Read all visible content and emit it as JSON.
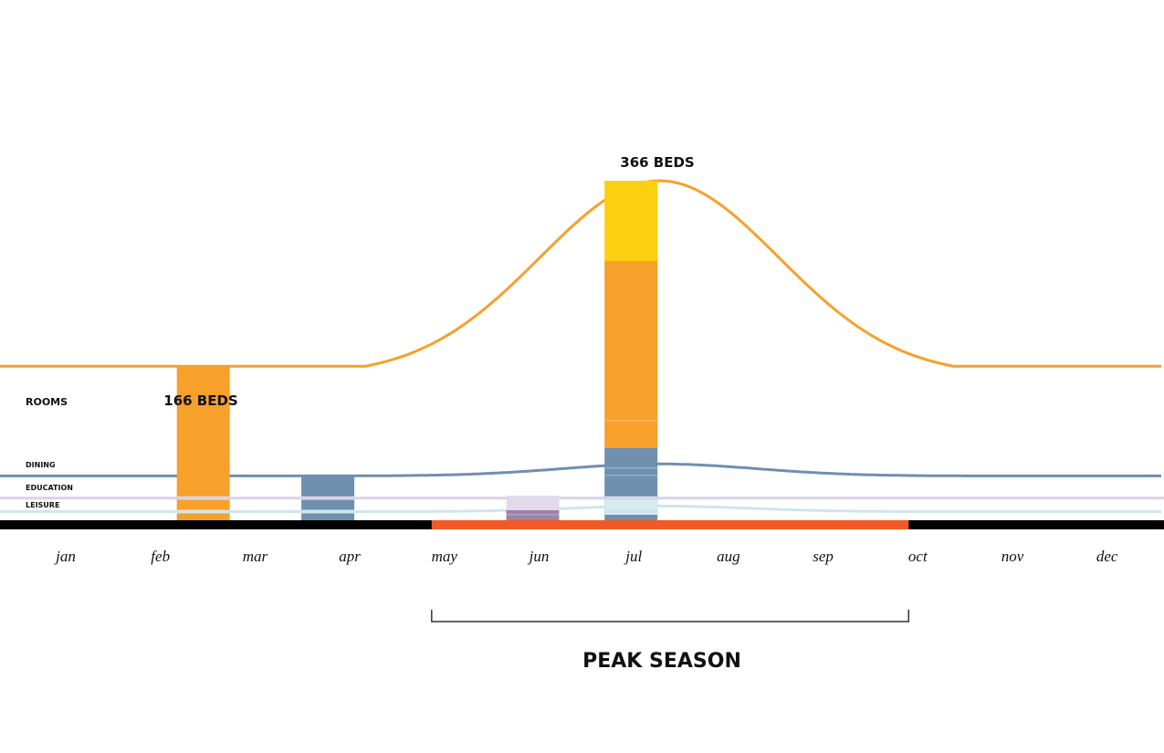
{
  "chart_data": {
    "type": "area",
    "title": "",
    "xlabel": "",
    "ylabel": "",
    "categories": [
      "jan",
      "feb",
      "mar",
      "apr",
      "may",
      "jun",
      "jul",
      "aug",
      "sep",
      "oct",
      "nov",
      "dec"
    ],
    "series": [
      {
        "name": "ROOMS",
        "color": "#F7A02A",
        "baseline_beds": 166,
        "peak_beds": 366,
        "peak_month": "jul"
      },
      {
        "name": "DINING",
        "color": "#6F8FAF",
        "baseline_level": 0.26,
        "peak_level": 0.33,
        "peak_month": "jul"
      },
      {
        "name": "EDUCATION",
        "color": "#DAD3E6",
        "baseline_level": 0.13
      },
      {
        "name": "LEISURE",
        "color": "#CDE6EE",
        "baseline_level": 0.04,
        "peak_level": 0.11,
        "peak_month": "jul"
      }
    ],
    "bars": [
      {
        "month": "feb",
        "segments": [
          {
            "category": "ROOMS",
            "color": "#F7A02A"
          }
        ]
      },
      {
        "month": "apr",
        "segments": [
          {
            "category": "DINING",
            "color": "#6F8FAF"
          }
        ]
      },
      {
        "month": "jun",
        "segments": [
          {
            "category": "LEISURE",
            "color": "#E2DAEA"
          },
          {
            "category": "EDUCATION",
            "color": "#9A84A9"
          }
        ]
      },
      {
        "month": "jul",
        "segments": [
          {
            "category": "ROOMS-PEAK",
            "color": "#FCCF10"
          },
          {
            "category": "ROOMS",
            "color": "#F7A02A"
          },
          {
            "category": "DINING",
            "color": "#6F8FAF"
          },
          {
            "category": "LEISURE",
            "color": "#D5EBF0"
          }
        ]
      }
    ],
    "annotations": [
      {
        "text": "166 BEDS",
        "month": "feb"
      },
      {
        "text": "366 BEDS",
        "month": "jul"
      }
    ],
    "peak_season": {
      "label": "PEAK SEASON",
      "start": "may",
      "end": "oct",
      "color": "#F15A24"
    },
    "grid": false,
    "legend": "left-inline"
  },
  "labels": {
    "rooms": "ROOMS",
    "dining": "DINING",
    "education": "EDUCATION",
    "leisure": "LEISURE",
    "feb_beds": "166 BEDS",
    "jul_beds": "366 BEDS",
    "peak_season": "PEAK SEASON"
  }
}
